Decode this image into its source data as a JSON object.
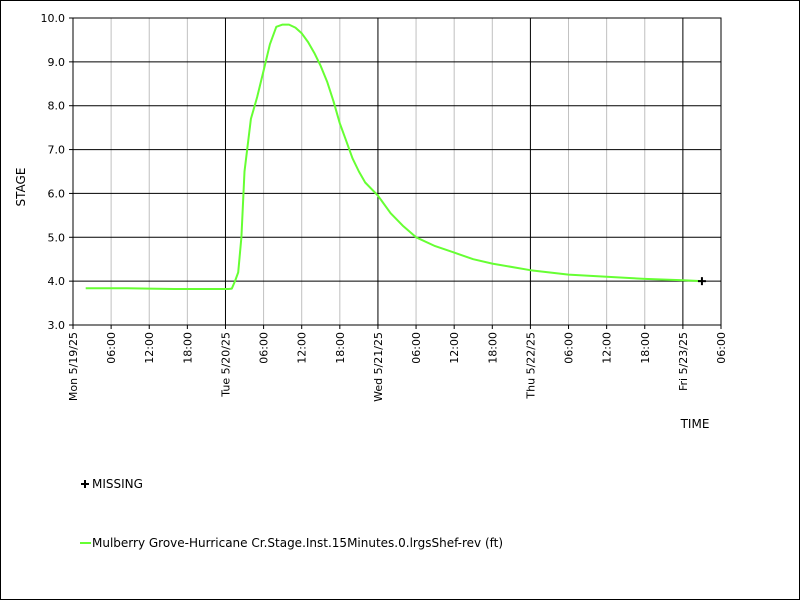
{
  "chart_data": {
    "type": "line",
    "xlabel": "TIME",
    "ylabel": "STAGE",
    "ylim": [
      3.0,
      10.0
    ],
    "xlim": [
      "2025-05-19 00:00",
      "2025-05-23 06:00"
    ],
    "grid": true,
    "y_ticks": [
      "3.0",
      "4.0",
      "5.0",
      "6.0",
      "7.0",
      "8.0",
      "9.0",
      "10.0"
    ],
    "x_ticks_minor": [
      {
        "t": "2025-05-19 06:00",
        "label": "06:00"
      },
      {
        "t": "2025-05-19 12:00",
        "label": "12:00"
      },
      {
        "t": "2025-05-19 18:00",
        "label": "18:00"
      },
      {
        "t": "2025-05-20 06:00",
        "label": "06:00"
      },
      {
        "t": "2025-05-20 12:00",
        "label": "12:00"
      },
      {
        "t": "2025-05-20 18:00",
        "label": "18:00"
      },
      {
        "t": "2025-05-21 06:00",
        "label": "06:00"
      },
      {
        "t": "2025-05-21 12:00",
        "label": "12:00"
      },
      {
        "t": "2025-05-21 18:00",
        "label": "18:00"
      },
      {
        "t": "2025-05-22 06:00",
        "label": "06:00"
      },
      {
        "t": "2025-05-22 12:00",
        "label": "12:00"
      },
      {
        "t": "2025-05-22 18:00",
        "label": "18:00"
      },
      {
        "t": "2025-05-23 06:00",
        "label": "06:00"
      }
    ],
    "x_ticks_major": [
      {
        "t": "2025-05-19 00:00",
        "label": "Mon 5/19/25"
      },
      {
        "t": "2025-05-20 00:00",
        "label": "Tue 5/20/25"
      },
      {
        "t": "2025-05-21 00:00",
        "label": "Wed 5/21/25"
      },
      {
        "t": "2025-05-22 00:00",
        "label": "Thu 5/22/25"
      },
      {
        "t": "2025-05-23 00:00",
        "label": "Fri 5/23/25"
      }
    ],
    "series": [
      {
        "name": "Mulberry Grove-Hurricane Cr.Stage.Inst.15Minutes.0.lrgsShef-rev (ft)",
        "color": "#66ff33",
        "x": [
          "2025-05-19 02:00",
          "2025-05-19 08:00",
          "2025-05-19 12:00",
          "2025-05-19 16:00",
          "2025-05-19 20:00",
          "2025-05-19 23:00",
          "2025-05-20 00:30",
          "2025-05-20 01:00",
          "2025-05-20 01:30",
          "2025-05-20 02:00",
          "2025-05-20 02:30",
          "2025-05-20 03:00",
          "2025-05-20 04:00",
          "2025-05-20 05:00",
          "2025-05-20 06:00",
          "2025-05-20 07:00",
          "2025-05-20 08:00",
          "2025-05-20 09:00",
          "2025-05-20 10:00",
          "2025-05-20 11:00",
          "2025-05-20 12:00",
          "2025-05-20 13:00",
          "2025-05-20 14:00",
          "2025-05-20 15:00",
          "2025-05-20 16:00",
          "2025-05-20 17:00",
          "2025-05-20 18:00",
          "2025-05-20 19:00",
          "2025-05-20 20:00",
          "2025-05-20 21:00",
          "2025-05-20 22:00",
          "2025-05-21 00:00",
          "2025-05-21 02:00",
          "2025-05-21 04:00",
          "2025-05-21 06:00",
          "2025-05-21 09:00",
          "2025-05-21 12:00",
          "2025-05-21 15:00",
          "2025-05-21 18:00",
          "2025-05-22 00:00",
          "2025-05-22 06:00",
          "2025-05-22 12:00",
          "2025-05-22 18:00",
          "2025-05-23 00:00",
          "2025-05-23 03:00"
        ],
        "values": [
          3.84,
          3.84,
          3.83,
          3.82,
          3.82,
          3.82,
          3.82,
          3.83,
          4.0,
          4.2,
          5.0,
          6.5,
          7.7,
          8.2,
          8.8,
          9.4,
          9.8,
          9.85,
          9.85,
          9.78,
          9.65,
          9.45,
          9.2,
          8.9,
          8.55,
          8.1,
          7.6,
          7.2,
          6.8,
          6.5,
          6.25,
          5.95,
          5.55,
          5.25,
          5.0,
          4.8,
          4.65,
          4.5,
          4.4,
          4.25,
          4.15,
          4.1,
          4.05,
          4.02,
          4.0
        ]
      }
    ],
    "missing_points": [
      {
        "x": "2025-05-23 03:00",
        "value": 4.0
      }
    ],
    "legend": {
      "missing_label": "MISSING",
      "series_label": "Mulberry Grove-Hurricane Cr.Stage.Inst.15Minutes.0.lrgsShef-rev (ft)"
    }
  }
}
